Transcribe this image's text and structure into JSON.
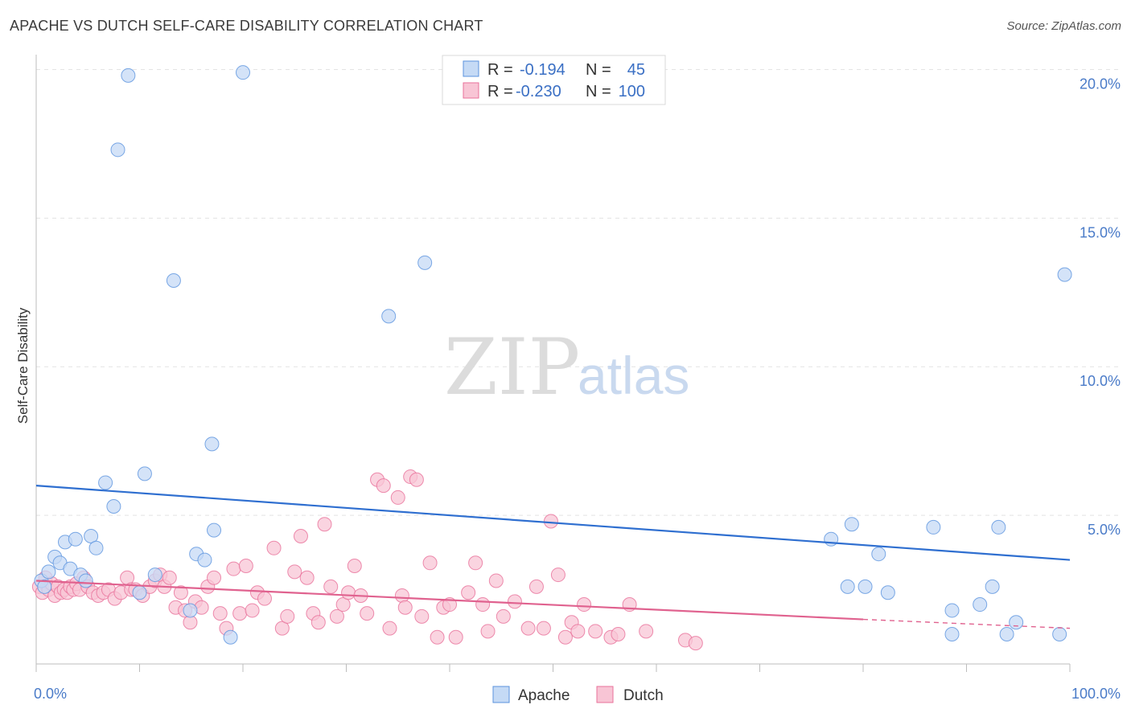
{
  "title": "APACHE VS DUTCH SELF-CARE DISABILITY CORRELATION CHART",
  "source": "Source: ZipAtlas.com",
  "watermark": {
    "zip": "ZIP",
    "atlas": "atlas"
  },
  "colors": {
    "apache": "#5b93de",
    "apache_fill": "#c5daf5",
    "dutch": "#e8719a",
    "dutch_fill": "#f8c5d5",
    "tick_text": "#4a7bc8",
    "grid": "#e3e3e3"
  },
  "legend": {
    "apache": {
      "r_label": "R = ",
      "r_value": "-0.194",
      "n_label": "N = ",
      "n_value": "45"
    },
    "dutch": {
      "r_label": "R = ",
      "r_value": "-0.230",
      "n_label": "N = ",
      "n_value": "100"
    }
  },
  "bottom_legend": {
    "apache": "Apache",
    "dutch": "Dutch"
  },
  "chart_data": {
    "type": "scatter",
    "title": "APACHE VS DUTCH SELF-CARE DISABILITY CORRELATION CHART",
    "xlabel": "",
    "ylabel": "Self-Care Disability",
    "xlim": [
      0,
      100
    ],
    "ylim": [
      0,
      20.5
    ],
    "x_tick_labels": [
      {
        "value": 0,
        "label": "0.0%"
      },
      {
        "value": 100,
        "label": "100.0%"
      }
    ],
    "y_tick_labels": [
      {
        "value": 5,
        "label": "5.0%"
      },
      {
        "value": 10,
        "label": "10.0%"
      },
      {
        "value": 15,
        "label": "15.0%"
      },
      {
        "value": 20,
        "label": "20.0%"
      }
    ],
    "grid": true,
    "series": [
      {
        "name": "Apache",
        "r": -0.194,
        "n": 45,
        "trend": {
          "x": [
            0,
            100
          ],
          "y": [
            6.0,
            3.5
          ]
        },
        "points": [
          [
            0.5,
            2.8
          ],
          [
            0.8,
            2.6
          ],
          [
            1.2,
            3.1
          ],
          [
            1.8,
            3.6
          ],
          [
            2.3,
            3.4
          ],
          [
            2.8,
            4.1
          ],
          [
            3.3,
            3.2
          ],
          [
            3.8,
            4.2
          ],
          [
            4.3,
            3.0
          ],
          [
            4.8,
            2.8
          ],
          [
            5.3,
            4.3
          ],
          [
            5.8,
            3.9
          ],
          [
            6.7,
            6.1
          ],
          [
            7.5,
            5.3
          ],
          [
            7.9,
            17.3
          ],
          [
            8.9,
            19.8
          ],
          [
            10.0,
            2.4
          ],
          [
            10.5,
            6.4
          ],
          [
            11.5,
            3.0
          ],
          [
            13.3,
            12.9
          ],
          [
            14.9,
            1.8
          ],
          [
            15.5,
            3.7
          ],
          [
            16.3,
            3.5
          ],
          [
            17.0,
            7.4
          ],
          [
            17.2,
            4.5
          ],
          [
            18.8,
            0.9
          ],
          [
            20.0,
            19.9
          ],
          [
            34.1,
            11.7
          ],
          [
            37.6,
            13.5
          ],
          [
            76.9,
            4.2
          ],
          [
            78.5,
            2.6
          ],
          [
            78.9,
            4.7
          ],
          [
            80.2,
            2.6
          ],
          [
            81.5,
            3.7
          ],
          [
            82.4,
            2.4
          ],
          [
            86.8,
            4.6
          ],
          [
            88.6,
            1.8
          ],
          [
            88.6,
            1.0
          ],
          [
            91.3,
            2.0
          ],
          [
            92.5,
            2.6
          ],
          [
            93.1,
            4.6
          ],
          [
            93.9,
            1.0
          ],
          [
            94.8,
            1.4
          ],
          [
            99.0,
            1.0
          ],
          [
            99.5,
            13.1
          ]
        ]
      },
      {
        "name": "Dutch",
        "r": -0.23,
        "n": 100,
        "trend": {
          "x": [
            0,
            80
          ],
          "y": [
            2.8,
            1.5
          ]
        },
        "trend_dashed": {
          "x": [
            80,
            100
          ],
          "y": [
            1.5,
            1.2
          ]
        },
        "points": [
          [
            0.3,
            2.6
          ],
          [
            0.6,
            2.4
          ],
          [
            0.9,
            2.9
          ],
          [
            1.2,
            2.5
          ],
          [
            1.5,
            2.7
          ],
          [
            1.8,
            2.3
          ],
          [
            2.1,
            2.6
          ],
          [
            2.4,
            2.4
          ],
          [
            2.7,
            2.5
          ],
          [
            3.0,
            2.4
          ],
          [
            3.3,
            2.6
          ],
          [
            3.6,
            2.5
          ],
          [
            3.9,
            2.7
          ],
          [
            4.2,
            2.5
          ],
          [
            4.6,
            2.9
          ],
          [
            5.0,
            2.6
          ],
          [
            5.5,
            2.4
          ],
          [
            6.0,
            2.3
          ],
          [
            6.5,
            2.4
          ],
          [
            7.0,
            2.5
          ],
          [
            7.6,
            2.2
          ],
          [
            8.2,
            2.4
          ],
          [
            8.8,
            2.9
          ],
          [
            9.2,
            2.5
          ],
          [
            9.6,
            2.5
          ],
          [
            10.3,
            2.3
          ],
          [
            11.0,
            2.6
          ],
          [
            11.5,
            2.8
          ],
          [
            12.0,
            3.0
          ],
          [
            12.4,
            2.6
          ],
          [
            12.9,
            2.9
          ],
          [
            13.5,
            1.9
          ],
          [
            14.0,
            2.4
          ],
          [
            14.4,
            1.8
          ],
          [
            14.9,
            1.4
          ],
          [
            15.4,
            2.1
          ],
          [
            16.0,
            1.9
          ],
          [
            16.6,
            2.6
          ],
          [
            17.2,
            2.9
          ],
          [
            17.8,
            1.7
          ],
          [
            18.4,
            1.2
          ],
          [
            19.1,
            3.2
          ],
          [
            19.7,
            1.7
          ],
          [
            20.3,
            3.3
          ],
          [
            20.9,
            1.8
          ],
          [
            21.4,
            2.4
          ],
          [
            22.1,
            2.2
          ],
          [
            23.0,
            3.9
          ],
          [
            23.8,
            1.2
          ],
          [
            24.3,
            1.6
          ],
          [
            25.0,
            3.1
          ],
          [
            25.6,
            4.3
          ],
          [
            26.2,
            2.9
          ],
          [
            26.8,
            1.7
          ],
          [
            27.3,
            1.4
          ],
          [
            27.9,
            4.7
          ],
          [
            28.5,
            2.6
          ],
          [
            29.1,
            1.6
          ],
          [
            29.7,
            2.0
          ],
          [
            30.2,
            2.4
          ],
          [
            30.8,
            3.3
          ],
          [
            31.4,
            2.3
          ],
          [
            32.0,
            1.7
          ],
          [
            33.0,
            6.2
          ],
          [
            33.6,
            6.0
          ],
          [
            34.2,
            1.2
          ],
          [
            35.0,
            5.6
          ],
          [
            35.4,
            2.3
          ],
          [
            35.7,
            1.9
          ],
          [
            36.2,
            6.3
          ],
          [
            36.8,
            6.2
          ],
          [
            37.3,
            1.6
          ],
          [
            38.1,
            3.4
          ],
          [
            38.8,
            0.9
          ],
          [
            39.4,
            1.9
          ],
          [
            40.0,
            2.0
          ],
          [
            40.6,
            0.9
          ],
          [
            41.8,
            2.4
          ],
          [
            42.5,
            3.4
          ],
          [
            43.2,
            2.0
          ],
          [
            43.7,
            1.1
          ],
          [
            44.5,
            2.8
          ],
          [
            45.2,
            1.6
          ],
          [
            46.3,
            2.1
          ],
          [
            47.6,
            1.2
          ],
          [
            48.4,
            2.6
          ],
          [
            49.1,
            1.2
          ],
          [
            49.8,
            4.8
          ],
          [
            50.5,
            3.0
          ],
          [
            51.2,
            0.9
          ],
          [
            51.8,
            1.4
          ],
          [
            52.4,
            1.1
          ],
          [
            53.0,
            2.0
          ],
          [
            54.1,
            1.1
          ],
          [
            55.6,
            0.9
          ],
          [
            56.3,
            1.0
          ],
          [
            57.4,
            2.0
          ],
          [
            59.0,
            1.1
          ],
          [
            62.8,
            0.8
          ],
          [
            63.8,
            0.7
          ]
        ]
      }
    ]
  }
}
